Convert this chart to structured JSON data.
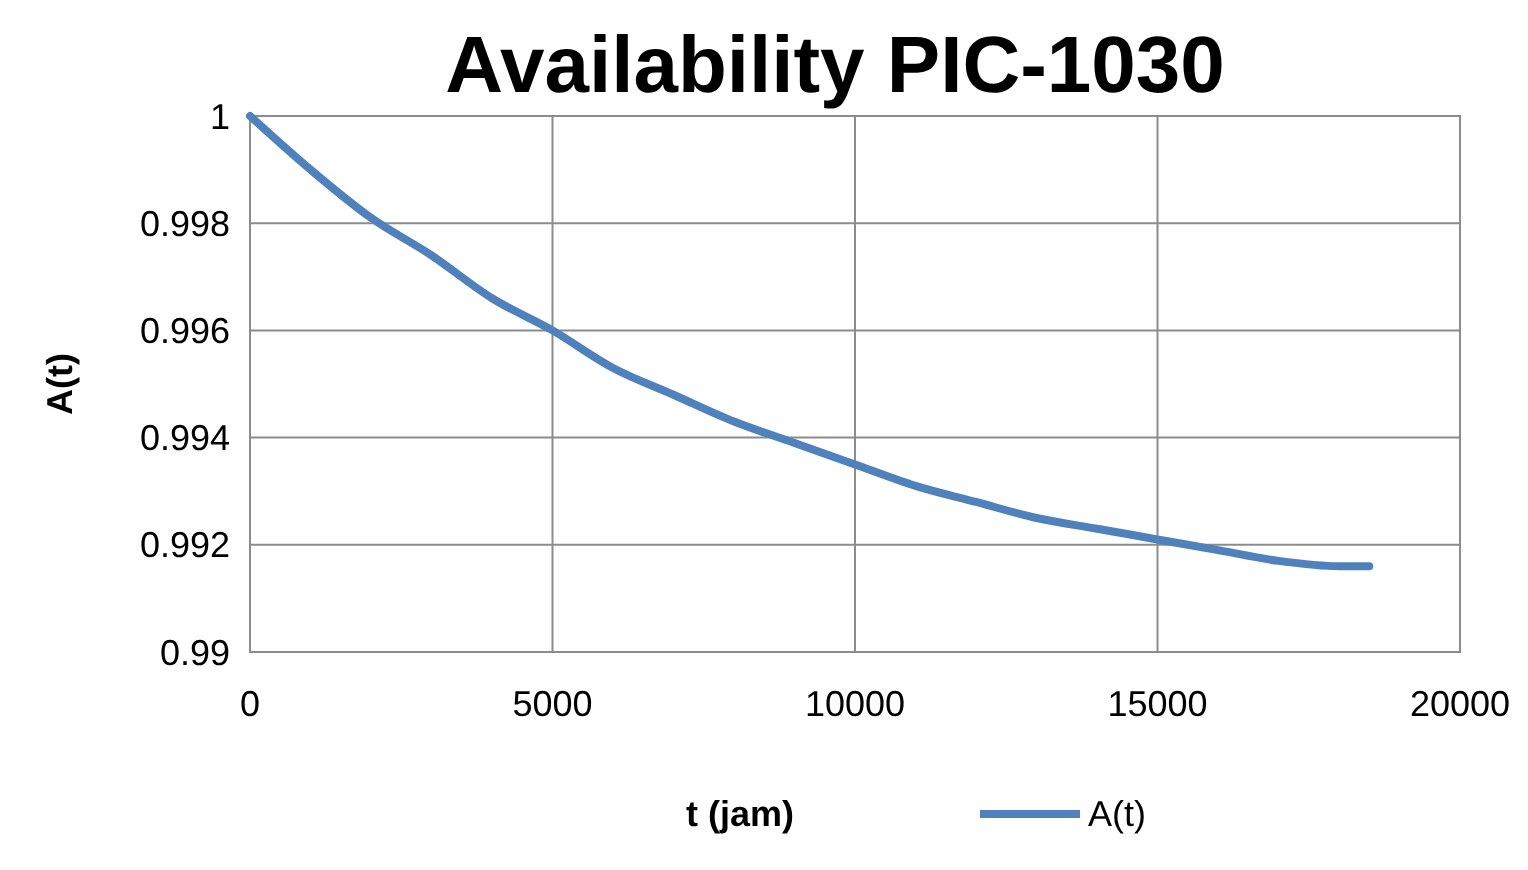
{
  "chart_data": {
    "type": "line",
    "title": "Availability PIC-1030",
    "xlabel": "t (jam)",
    "ylabel": "A(t)",
    "xlim": [
      0,
      20000
    ],
    "xticks": [
      0,
      5000,
      10000,
      15000,
      20000
    ],
    "ylim": [
      0.99,
      1
    ],
    "yticks": [
      0.99,
      0.992,
      0.994,
      0.996,
      0.998,
      1
    ],
    "grid": true,
    "legend": "bottom",
    "marker": "none",
    "line_style": "solid",
    "x": [
      0,
      1000,
      2000,
      3000,
      4000,
      5000,
      6000,
      7000,
      8000,
      9000,
      10000,
      11000,
      12000,
      13000,
      14000,
      15000,
      16000,
      17000,
      18000,
      18500
    ],
    "series": [
      {
        "name": "A(t)",
        "color": "#4f81bd",
        "values": [
          1.0,
          0.999,
          0.9981,
          0.9974,
          0.9966,
          0.996,
          0.9953,
          0.9948,
          0.9943,
          0.9939,
          0.9935,
          0.9931,
          0.9928,
          0.9925,
          0.9923,
          0.9921,
          0.9919,
          0.9917,
          0.9916,
          0.9916
        ]
      }
    ]
  }
}
